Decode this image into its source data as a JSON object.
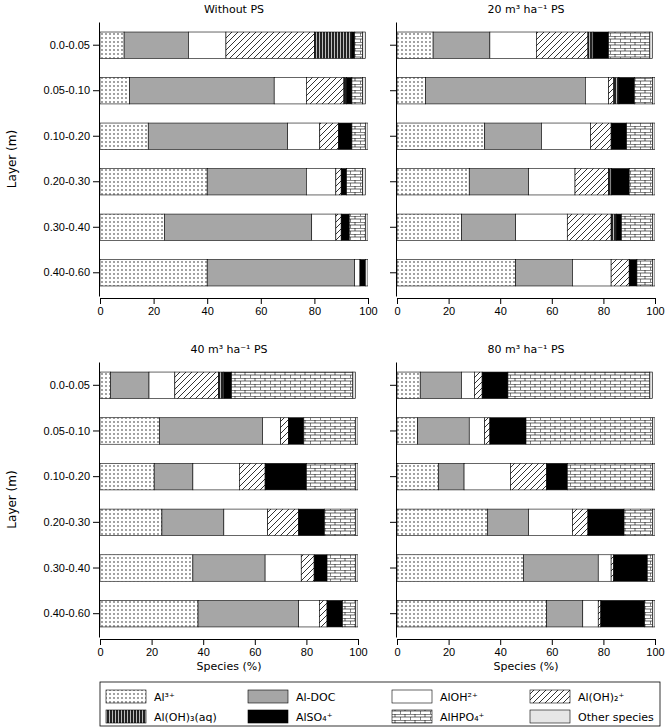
{
  "chart_data": [
    {
      "type": "bar",
      "orientation": "horizontal",
      "stacked": true,
      "title": "Without PS",
      "ylabel": "Layer (m)",
      "categories": [
        "0.0-0.05",
        "0.05-0.10",
        "0.10-0.20",
        "0.20-0.30",
        "0.30-0.40",
        "0.40-0.60"
      ],
      "xlim": [
        0,
        100
      ],
      "xticks": [
        0,
        20,
        40,
        60,
        80,
        100
      ],
      "series": [
        {
          "name": "Al³⁺",
          "color": "#ffffff",
          "values": [
            9,
            11,
            18,
            40,
            24,
            40
          ]
        },
        {
          "name": "Al-DOC",
          "color": "#a6a6a6",
          "values": [
            24,
            54,
            52,
            37,
            55,
            55
          ]
        },
        {
          "name": "AlOH²⁺",
          "color": "#ffffff",
          "values": [
            14,
            12,
            12,
            11,
            9,
            2
          ]
        },
        {
          "name": "Al(OH)₂⁺",
          "color": "#ffffff",
          "values": [
            33,
            14,
            7,
            2,
            2,
            0
          ]
        },
        {
          "name": "Al(OH)₃(aq)",
          "color": "#222222",
          "values": [
            14,
            1,
            0,
            0,
            0,
            0
          ]
        },
        {
          "name": "AlSO₄⁺",
          "color": "#000000",
          "values": [
            1,
            2,
            5,
            2,
            3,
            2
          ]
        },
        {
          "name": "AlHPO₄⁺",
          "color": "#ffffff",
          "values": [
            3,
            4,
            5,
            6,
            6,
            0
          ]
        },
        {
          "name": "Other species",
          "color": "#e6e6e6",
          "values": [
            1,
            1,
            1,
            1,
            1,
            1
          ]
        }
      ]
    },
    {
      "type": "bar",
      "orientation": "horizontal",
      "stacked": true,
      "title": "20 m³ ha⁻¹ PS",
      "tick_labels": "x",
      "categories": [
        "0.0-0.05",
        "0.05-0.10",
        "0.10-0.20",
        "0.20-0.30",
        "0.30-0.40",
        "0.40-0.60"
      ],
      "xlim": [
        0,
        100
      ],
      "xticks": [
        0,
        20,
        40,
        60,
        80,
        100
      ],
      "series": [
        {
          "name": "Al³⁺",
          "color": "#ffffff",
          "values": [
            14,
            11,
            34,
            28,
            25,
            46
          ]
        },
        {
          "name": "Al-DOC",
          "color": "#a6a6a6",
          "values": [
            22,
            62,
            22,
            23,
            21,
            22
          ]
        },
        {
          "name": "AlOH²⁺",
          "color": "#ffffff",
          "values": [
            18,
            9,
            19,
            18,
            20,
            15
          ]
        },
        {
          "name": "Al(OH)₂⁺",
          "color": "#ffffff",
          "values": [
            20,
            2,
            8,
            13,
            17,
            7
          ]
        },
        {
          "name": "Al(OH)₃(aq)",
          "color": "#222222",
          "values": [
            2,
            2,
            0,
            1,
            2,
            0
          ]
        },
        {
          "name": "AlSO₄⁺",
          "color": "#000000",
          "values": [
            6,
            6,
            6,
            7,
            2,
            3
          ]
        },
        {
          "name": "AlHPO₄⁺",
          "color": "#ffffff",
          "values": [
            16,
            7,
            10,
            9,
            12,
            6
          ]
        },
        {
          "name": "Other species",
          "color": "#e6e6e6",
          "values": [
            1,
            1,
            1,
            1,
            1,
            1
          ]
        }
      ]
    },
    {
      "type": "bar",
      "orientation": "horizontal",
      "stacked": true,
      "title": "40 m³ ha⁻¹ PS",
      "ylabel": "Layer (m)",
      "xlabel": "Species (%)",
      "categories": [
        "0.0-0.05",
        "0.05-0.10",
        "0.10-0.20",
        "0.20-0.30",
        "0.30-0.40",
        "0.40-0.60"
      ],
      "xlim": [
        0,
        100
      ],
      "xticks": [
        0,
        20,
        40,
        60,
        80,
        100
      ],
      "series": [
        {
          "name": "Al³⁺",
          "color": "#ffffff",
          "values": [
            4,
            23,
            21,
            24,
            36,
            38
          ]
        },
        {
          "name": "Al-DOC",
          "color": "#a6a6a6",
          "values": [
            15,
            40,
            15,
            24,
            28,
            39
          ]
        },
        {
          "name": "AlOH²⁺",
          "color": "#ffffff",
          "values": [
            10,
            7,
            18,
            17,
            14,
            8
          ]
        },
        {
          "name": "Al(OH)₂⁺",
          "color": "#ffffff",
          "values": [
            17,
            3,
            10,
            12,
            5,
            3
          ]
        },
        {
          "name": "Al(OH)₃(aq)",
          "color": "#222222",
          "values": [
            2,
            0,
            0,
            0,
            0,
            0
          ]
        },
        {
          "name": "AlSO₄⁺",
          "color": "#000000",
          "values": [
            3,
            6,
            16,
            10,
            5,
            6
          ]
        },
        {
          "name": "AlHPO₄⁺",
          "color": "#ffffff",
          "values": [
            47,
            20,
            19,
            12,
            11,
            5
          ]
        },
        {
          "name": "Other species",
          "color": "#e6e6e6",
          "values": [
            1,
            1,
            1,
            1,
            1,
            1
          ]
        }
      ]
    },
    {
      "type": "bar",
      "orientation": "horizontal",
      "stacked": true,
      "title": "80 m³ ha⁻¹ PS",
      "xlabel": "Species (%)",
      "tick_labels": "x",
      "categories": [
        "0.0-0.05",
        "0.05-0.10",
        "0.10-0.20",
        "0.20-0.30",
        "0.30-0.40",
        "0.40-0.60"
      ],
      "xlim": [
        0,
        100
      ],
      "xticks": [
        0,
        20,
        40,
        60,
        80,
        100
      ],
      "series": [
        {
          "name": "Al³⁺",
          "color": "#ffffff",
          "values": [
            9,
            8,
            16,
            35,
            49,
            58
          ]
        },
        {
          "name": "Al-DOC",
          "color": "#a6a6a6",
          "values": [
            16,
            20,
            10,
            16,
            29,
            14
          ]
        },
        {
          "name": "AlOH²⁺",
          "color": "#ffffff",
          "values": [
            5,
            6,
            18,
            17,
            5,
            6
          ]
        },
        {
          "name": "Al(OH)₂⁺",
          "color": "#ffffff",
          "values": [
            3,
            2,
            14,
            6,
            1,
            1
          ]
        },
        {
          "name": "Al(OH)₃(aq)",
          "color": "#222222",
          "values": [
            0,
            0,
            0,
            0,
            0,
            0
          ]
        },
        {
          "name": "AlSO₄⁺",
          "color": "#000000",
          "values": [
            10,
            14,
            8,
            14,
            13,
            17
          ]
        },
        {
          "name": "AlHPO₄⁺",
          "color": "#ffffff",
          "values": [
            55,
            49,
            33,
            11,
            2,
            3
          ]
        },
        {
          "name": "Other species",
          "color": "#e6e6e6",
          "values": [
            1,
            1,
            1,
            1,
            1,
            1
          ]
        }
      ]
    }
  ]
}
